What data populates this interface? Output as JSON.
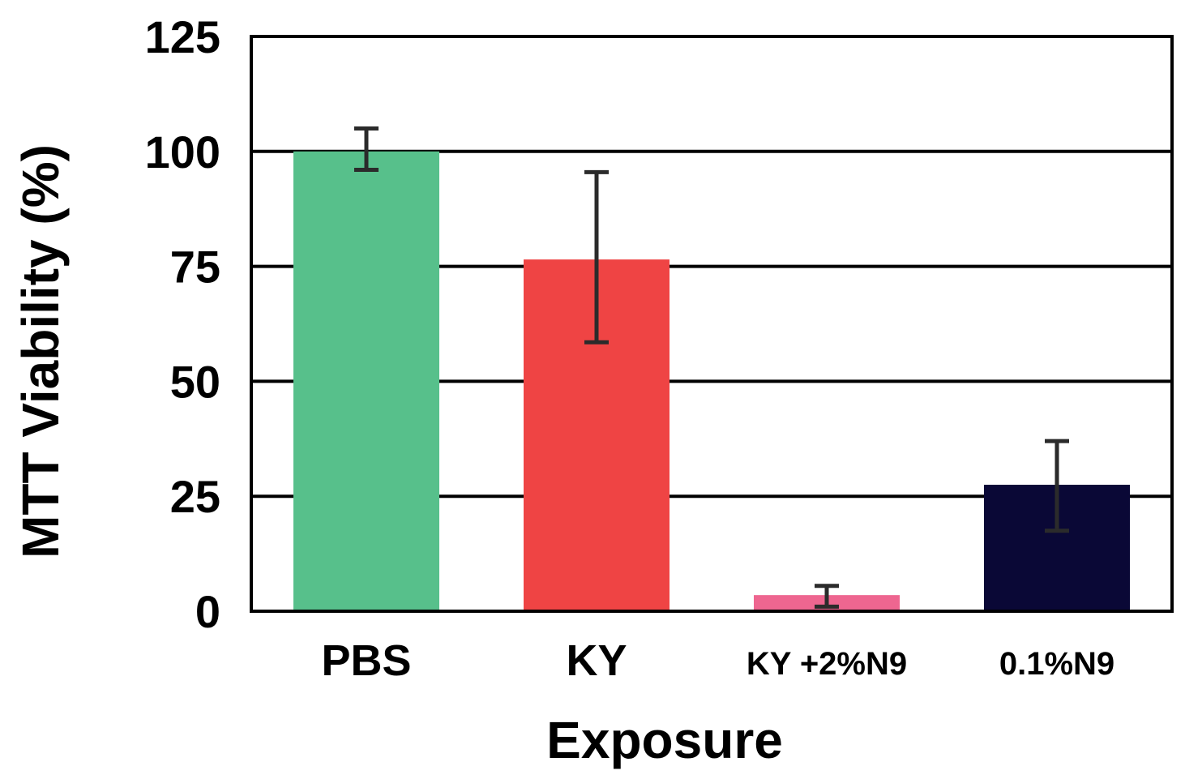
{
  "chart_data": {
    "type": "bar",
    "title": "",
    "xlabel": "Exposure",
    "ylabel": "MTT Viability (%)",
    "ylim": [
      0,
      125
    ],
    "yticks": [
      "0",
      "25",
      "50",
      "75",
      "100",
      "125"
    ],
    "grid": true,
    "categories": [
      "PBS",
      "KY",
      "KY +2%N9",
      "0.1%N9"
    ],
    "values": [
      100,
      76.5,
      3.5,
      27.5
    ],
    "error_low": [
      96,
      58.5,
      1,
      17.5
    ],
    "error_high": [
      105,
      95.5,
      5.5,
      37
    ],
    "colors": [
      "#57c08b",
      "#ef4444",
      "#ee6690",
      "#0a0836"
    ]
  }
}
